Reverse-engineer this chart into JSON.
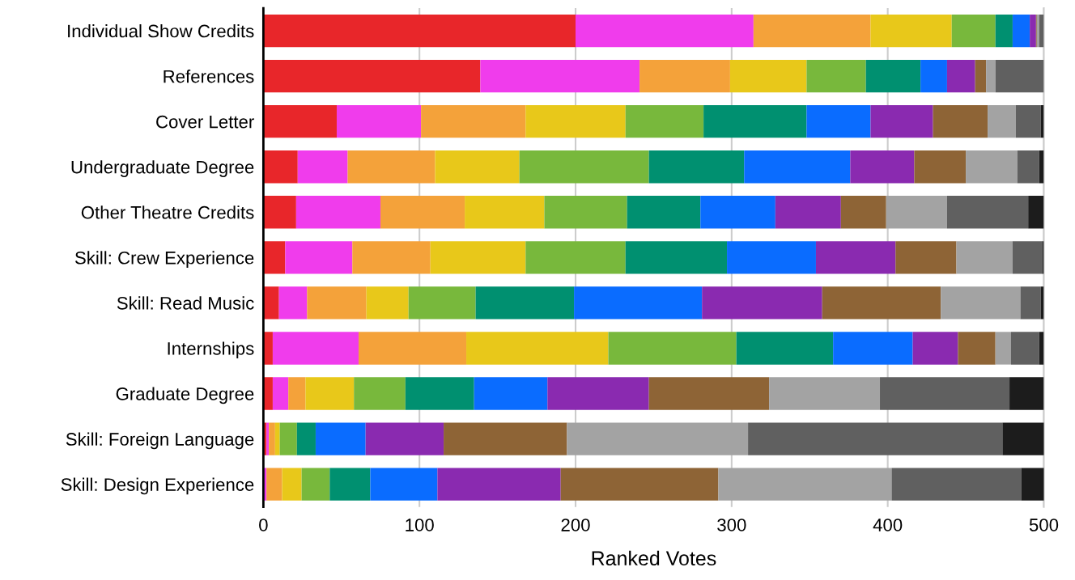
{
  "chart_data": {
    "type": "bar",
    "orientation": "horizontal",
    "stacked": true,
    "xlabel": "Ranked Votes",
    "categories": [
      "Individual Show Credits",
      "References",
      "Cover Letter",
      "Undergraduate Degree",
      "Other Theatre Credits",
      "Skill: Crew Experience",
      "Skill: Read Music",
      "Internships",
      "Graduate Degree",
      "Skill: Foreign Language",
      "Skill: Design Experience"
    ],
    "xlim": [
      0,
      500
    ],
    "xticks": [
      0,
      100,
      200,
      300,
      400,
      500
    ],
    "grid": "x",
    "legend": false,
    "series": [
      {
        "color": "#e8262a",
        "values": [
          200,
          139,
          47,
          22,
          21,
          14,
          10,
          6,
          6,
          2,
          0
        ]
      },
      {
        "color": "#f03cec",
        "values": [
          114,
          102,
          54,
          32,
          54,
          43,
          18,
          55,
          10,
          1.5,
          2
        ]
      },
      {
        "color": "#f4a23a",
        "values": [
          75,
          58,
          67,
          56,
          54,
          50,
          38,
          69,
          11,
          4,
          10
        ]
      },
      {
        "color": "#e8c81a",
        "values": [
          52,
          49,
          64,
          54,
          51,
          61,
          27,
          91,
          31,
          3,
          12.5
        ]
      },
      {
        "color": "#78b83c",
        "values": [
          28,
          38,
          50,
          83,
          53,
          64,
          43,
          82,
          33,
          11,
          18
        ]
      },
      {
        "color": "#009070",
        "values": [
          11,
          35,
          66,
          61,
          47,
          65,
          63,
          62,
          44,
          12,
          26
        ]
      },
      {
        "color": "#0a6cff",
        "values": [
          11,
          17,
          41,
          68,
          48,
          57,
          82,
          51,
          47,
          32,
          43
        ]
      },
      {
        "color": "#8a2ab0",
        "values": [
          4,
          18,
          40,
          41,
          42,
          51,
          77,
          29,
          65,
          50,
          79
        ]
      },
      {
        "color": "#8e6436",
        "values": [
          0.5,
          7,
          35,
          33,
          29,
          39,
          76,
          24,
          77,
          79,
          101
        ]
      },
      {
        "color": "#a3a3a3",
        "values": [
          1.5,
          6,
          18,
          33,
          39,
          36,
          51,
          10,
          71,
          116,
          111
        ]
      },
      {
        "color": "#606060",
        "values": [
          3,
          31,
          16,
          14,
          52,
          19,
          13,
          18,
          83,
          163,
          83
        ]
      },
      {
        "color": "#1c1c1c",
        "values": [
          0,
          0,
          2,
          3,
          10,
          1,
          2,
          3,
          22,
          27,
          15
        ]
      }
    ]
  }
}
